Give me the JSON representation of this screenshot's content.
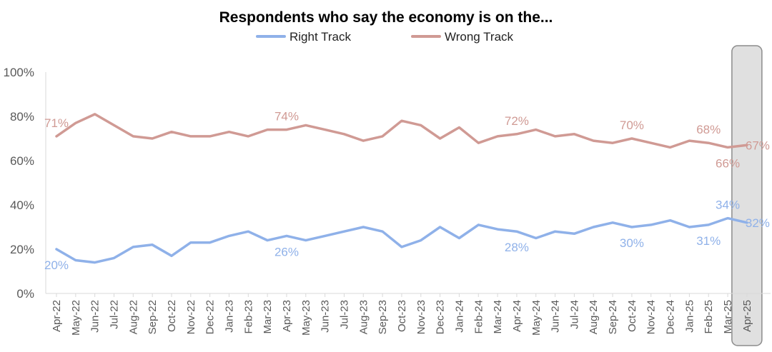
{
  "chart_data": {
    "type": "line",
    "title": "Respondents who say the economy is on the...",
    "xlabel": "",
    "ylabel": "",
    "ylim": [
      0,
      100
    ],
    "yticks": [
      "0%",
      "20%",
      "40%",
      "60%",
      "80%",
      "100%"
    ],
    "grid": false,
    "legend": "top-center",
    "highlight_category": "Apr-25",
    "categories": [
      "Apr-22",
      "May-22",
      "Jun-22",
      "Jul-22",
      "Aug-22",
      "Sep-22",
      "Oct-22",
      "Nov-22",
      "Dec-22",
      "Jan-23",
      "Feb-23",
      "Mar-23",
      "Apr-23",
      "May-23",
      "Jun-23",
      "Jul-23",
      "Aug-23",
      "Sep-23",
      "Oct-23",
      "Nov-23",
      "Dec-23",
      "Jan-24",
      "Feb-24",
      "Mar-24",
      "Apr-24",
      "May-24",
      "Jun-24",
      "Jul-24",
      "Aug-24",
      "Sep-24",
      "Oct-24",
      "Nov-24",
      "Dec-24",
      "Jan-25",
      "Feb-25",
      "Mar-25",
      "Apr-25"
    ],
    "series": [
      {
        "name": "Right Track",
        "color": "#8FB1E9",
        "values": [
          20,
          15,
          14,
          16,
          21,
          22,
          17,
          23,
          23,
          26,
          28,
          24,
          26,
          24,
          26,
          28,
          30,
          28,
          21,
          24,
          30,
          25,
          31,
          29,
          28,
          25,
          28,
          27,
          30,
          32,
          30,
          31,
          33,
          30,
          31,
          34,
          32
        ],
        "data_labels": [
          {
            "index": 0,
            "text": "20%",
            "position": "below"
          },
          {
            "index": 12,
            "text": "26%",
            "position": "below"
          },
          {
            "index": 24,
            "text": "28%",
            "position": "below"
          },
          {
            "index": 30,
            "text": "30%",
            "position": "below"
          },
          {
            "index": 34,
            "text": "31%",
            "position": "below"
          },
          {
            "index": 35,
            "text": "34%",
            "position": "above"
          },
          {
            "index": 36,
            "text": "32%",
            "position": "right"
          }
        ]
      },
      {
        "name": "Wrong Track",
        "color": "#D09A94",
        "values": [
          71,
          77,
          81,
          76,
          71,
          70,
          73,
          71,
          71,
          73,
          71,
          74,
          74,
          76,
          74,
          72,
          69,
          71,
          78,
          76,
          70,
          75,
          68,
          71,
          72,
          74,
          71,
          72,
          69,
          68,
          70,
          68,
          66,
          69,
          68,
          66,
          67
        ],
        "data_labels": [
          {
            "index": 0,
            "text": "71%",
            "position": "above"
          },
          {
            "index": 12,
            "text": "74%",
            "position": "above"
          },
          {
            "index": 24,
            "text": "72%",
            "position": "above"
          },
          {
            "index": 30,
            "text": "70%",
            "position": "above"
          },
          {
            "index": 34,
            "text": "68%",
            "position": "above"
          },
          {
            "index": 35,
            "text": "66%",
            "position": "below"
          },
          {
            "index": 36,
            "text": "67%",
            "position": "right"
          }
        ]
      }
    ]
  }
}
